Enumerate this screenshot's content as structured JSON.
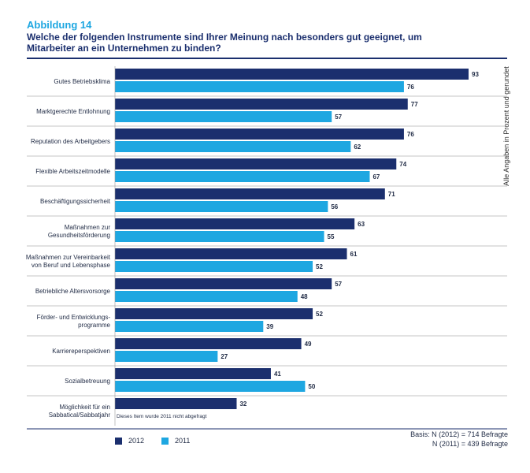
{
  "figure": {
    "label": "Abbildung 14",
    "title": "Welche der folgenden Instrumente sind Ihrer Meinung nach besonders gut geeignet, um Mitarbeiter an ein Unternehmen zu binden?",
    "side_note": "Alle Angaben in Prozent und gerundet",
    "basis_line1": "Basis: N (2012) = 714 Befragte",
    "basis_line2": "N (2011) = 439 Befragte"
  },
  "chart_data": {
    "type": "bar",
    "orientation": "horizontal",
    "categories": [
      [
        "Gutes Betriebsklima"
      ],
      [
        "Marktgerechte Entlohnung"
      ],
      [
        "Reputation des Arbeitgebers"
      ],
      [
        "Flexible Arbeitszeitmodelle"
      ],
      [
        "Beschäftigungssicherheit"
      ],
      [
        "Maßnahmen zur",
        "Gesundheitsförderung"
      ],
      [
        "Maßnahmen zur Vereinbarkeit",
        "von Beruf und Lebensphase"
      ],
      [
        "Betriebliche Altersvorsorge"
      ],
      [
        "Förder- und Entwicklungs-",
        "programme"
      ],
      [
        "Karriereperspektiven"
      ],
      [
        "Sozialbetreuung"
      ],
      [
        "Möglichkeit für ein",
        "Sabbatical/Sabbatjahr"
      ]
    ],
    "series": [
      {
        "name": "2012",
        "color": "#1b2f6e",
        "values": [
          93,
          77,
          76,
          74,
          71,
          63,
          61,
          57,
          52,
          49,
          41,
          32
        ]
      },
      {
        "name": "2011",
        "color": "#1ea7e1",
        "values": [
          76,
          57,
          62,
          67,
          56,
          55,
          52,
          48,
          39,
          27,
          50,
          null
        ]
      }
    ],
    "annotations": [
      {
        "category_index": 11,
        "text": "Dieses Item wurde 2011 nicht abgefragt"
      }
    ],
    "xlim": [
      0,
      100
    ],
    "grid": false,
    "legend_position": "bottom-left"
  }
}
